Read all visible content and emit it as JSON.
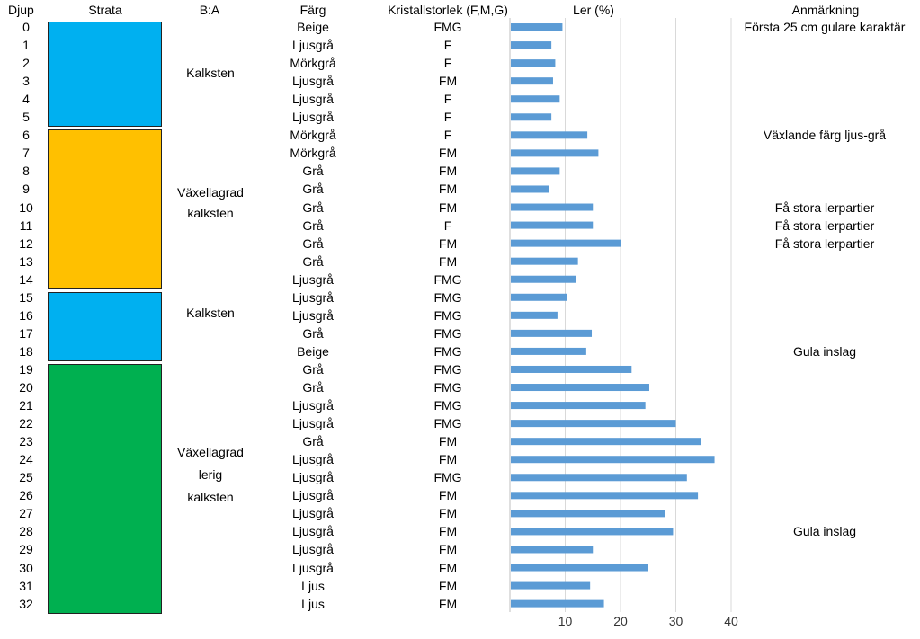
{
  "headers": {
    "djup": "Djup",
    "strata": "Strata",
    "ba": "B:A",
    "farg": "Färg",
    "kristall": "Kristallstorlek (F,M,G)",
    "ler": "Ler (%)",
    "anm": "Anmärkning"
  },
  "depths": [
    "0",
    "1",
    "2",
    "3",
    "4",
    "5",
    "6",
    "7",
    "8",
    "9",
    "10",
    "11",
    "12",
    "13",
    "14",
    "15",
    "16",
    "17",
    "18",
    "19",
    "20",
    "21",
    "22",
    "23",
    "24",
    "25",
    "26",
    "27",
    "28",
    "29",
    "30",
    "31",
    "32"
  ],
  "farg": [
    "Beige",
    "Ljusgrå",
    "Mörkgrå",
    "Ljusgrå",
    "Ljusgrå",
    "Ljusgrå",
    "Mörkgrå",
    "Mörkgrå",
    "Grå",
    "Grå",
    "Grå",
    "Grå",
    "Grå",
    "Grå",
    "Ljusgrå",
    "Ljusgrå",
    "Ljusgrå",
    "Grå",
    "Beige",
    "Grå",
    "Grå",
    "Ljusgrå",
    "Ljusgrå",
    "Grå",
    "Ljusgrå",
    "Ljusgrå",
    "Ljusgrå",
    "Ljusgrå",
    "Ljusgrå",
    "Ljusgrå",
    "Ljusgrå",
    "Ljus",
    "Ljus"
  ],
  "kristall": [
    "FMG",
    "F",
    "F",
    "FM",
    "F",
    "F",
    "F",
    "FM",
    "FM",
    "FM",
    "FM",
    "F",
    "FM",
    "FM",
    "FMG",
    "FMG",
    "FMG",
    "FMG",
    "FMG",
    "FMG",
    "FMG",
    "FMG",
    "FMG",
    "FM",
    "FM",
    "FMG",
    "FM",
    "FM",
    "FM",
    "FM",
    "FM",
    "FM",
    "FM"
  ],
  "anmarkning": [
    {
      "depth": 0,
      "text": "Första 25 cm gulare karaktär"
    },
    {
      "depth": 6,
      "text": "Växlande färg ljus-grå"
    },
    {
      "depth": 10,
      "text": "Få stora lerpartier"
    },
    {
      "depth": 11,
      "text": "Få stora lerpartier"
    },
    {
      "depth": 12,
      "text": "Få stora lerpartier"
    },
    {
      "depth": 18,
      "text": "Gula inslag"
    },
    {
      "depth": 28,
      "text": "Gula inslag"
    }
  ],
  "strata": [
    {
      "from": 0,
      "to": 5,
      "color": "#00b0f0"
    },
    {
      "from": 6,
      "to": 14,
      "color": "#ffc000"
    },
    {
      "from": 15,
      "to": 18,
      "color": "#00b0f0"
    },
    {
      "from": 19,
      "to": 32,
      "color": "#00b050"
    }
  ],
  "ba_labels": [
    {
      "lines": [
        "Kalksten"
      ]
    },
    {
      "lines": [
        "Växellagrad",
        "kalksten"
      ]
    },
    {
      "lines": [
        "Kalksten"
      ]
    },
    {
      "lines": [
        "Växellagrad",
        "lerig",
        "kalksten"
      ]
    }
  ],
  "chart_data": {
    "type": "bar",
    "orientation": "horizontal",
    "title": "",
    "xlabel": "",
    "ylabel": "",
    "categories": [
      "0",
      "1",
      "2",
      "3",
      "4",
      "5",
      "6",
      "7",
      "8",
      "9",
      "10",
      "11",
      "12",
      "13",
      "14",
      "15",
      "16",
      "17",
      "18",
      "19",
      "20",
      "21",
      "22",
      "23",
      "24",
      "25",
      "26",
      "27",
      "28",
      "29",
      "30",
      "31",
      "32"
    ],
    "values": [
      9.5,
      7.5,
      8.2,
      7.8,
      9,
      7.5,
      14,
      16,
      9,
      7,
      15,
      15,
      20,
      12.3,
      12,
      10.3,
      8.6,
      14.8,
      13.8,
      22,
      25.2,
      24.5,
      30,
      34.5,
      37,
      32,
      34,
      28,
      29.5,
      15,
      25,
      14.5,
      17
    ],
    "xlim": [
      0,
      40
    ],
    "x_ticks": [
      "10",
      "20",
      "30",
      "40"
    ],
    "x_tick_values": [
      10,
      20,
      30,
      40
    ],
    "bar_color": "#5b9bd5",
    "gridlines": true
  }
}
